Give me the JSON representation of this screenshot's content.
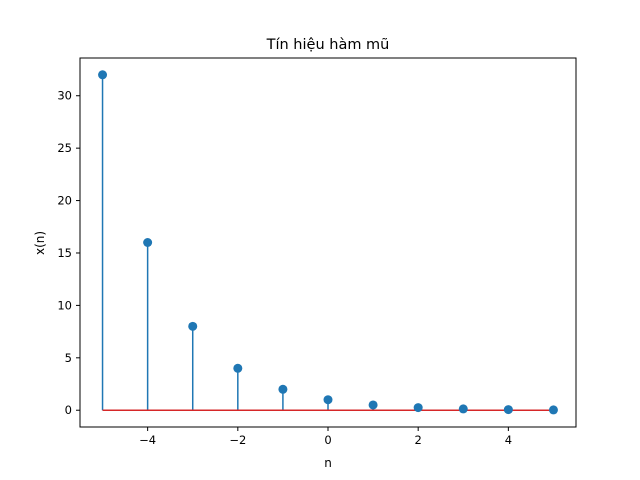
{
  "chart_data": {
    "type": "stem",
    "title": "Tín hiệu hàm mũ",
    "xlabel": "n",
    "ylabel": "x(n)",
    "xlim": [
      -5.5,
      5.5
    ],
    "ylim": [
      -1.6,
      33.6
    ],
    "x_ticks": [
      -4,
      -2,
      0,
      2,
      4
    ],
    "x_tick_labels": [
      "−4",
      "−2",
      "0",
      "2",
      "4"
    ],
    "y_ticks": [
      0,
      5,
      10,
      15,
      20,
      25,
      30
    ],
    "y_tick_labels": [
      "0",
      "5",
      "10",
      "15",
      "20",
      "25",
      "30"
    ],
    "grid": false,
    "series": [
      {
        "x": [
          -5,
          -4,
          -3,
          -2,
          -1,
          0,
          1,
          2,
          3,
          4,
          5
        ],
        "values": [
          32,
          16,
          8,
          4,
          2,
          1,
          0.5,
          0.25,
          0.125,
          0.0625,
          0.03125
        ]
      }
    ],
    "colors": {
      "stem": "#1f77b4",
      "marker": "#1f77b4",
      "baseline": "#d62728"
    }
  }
}
